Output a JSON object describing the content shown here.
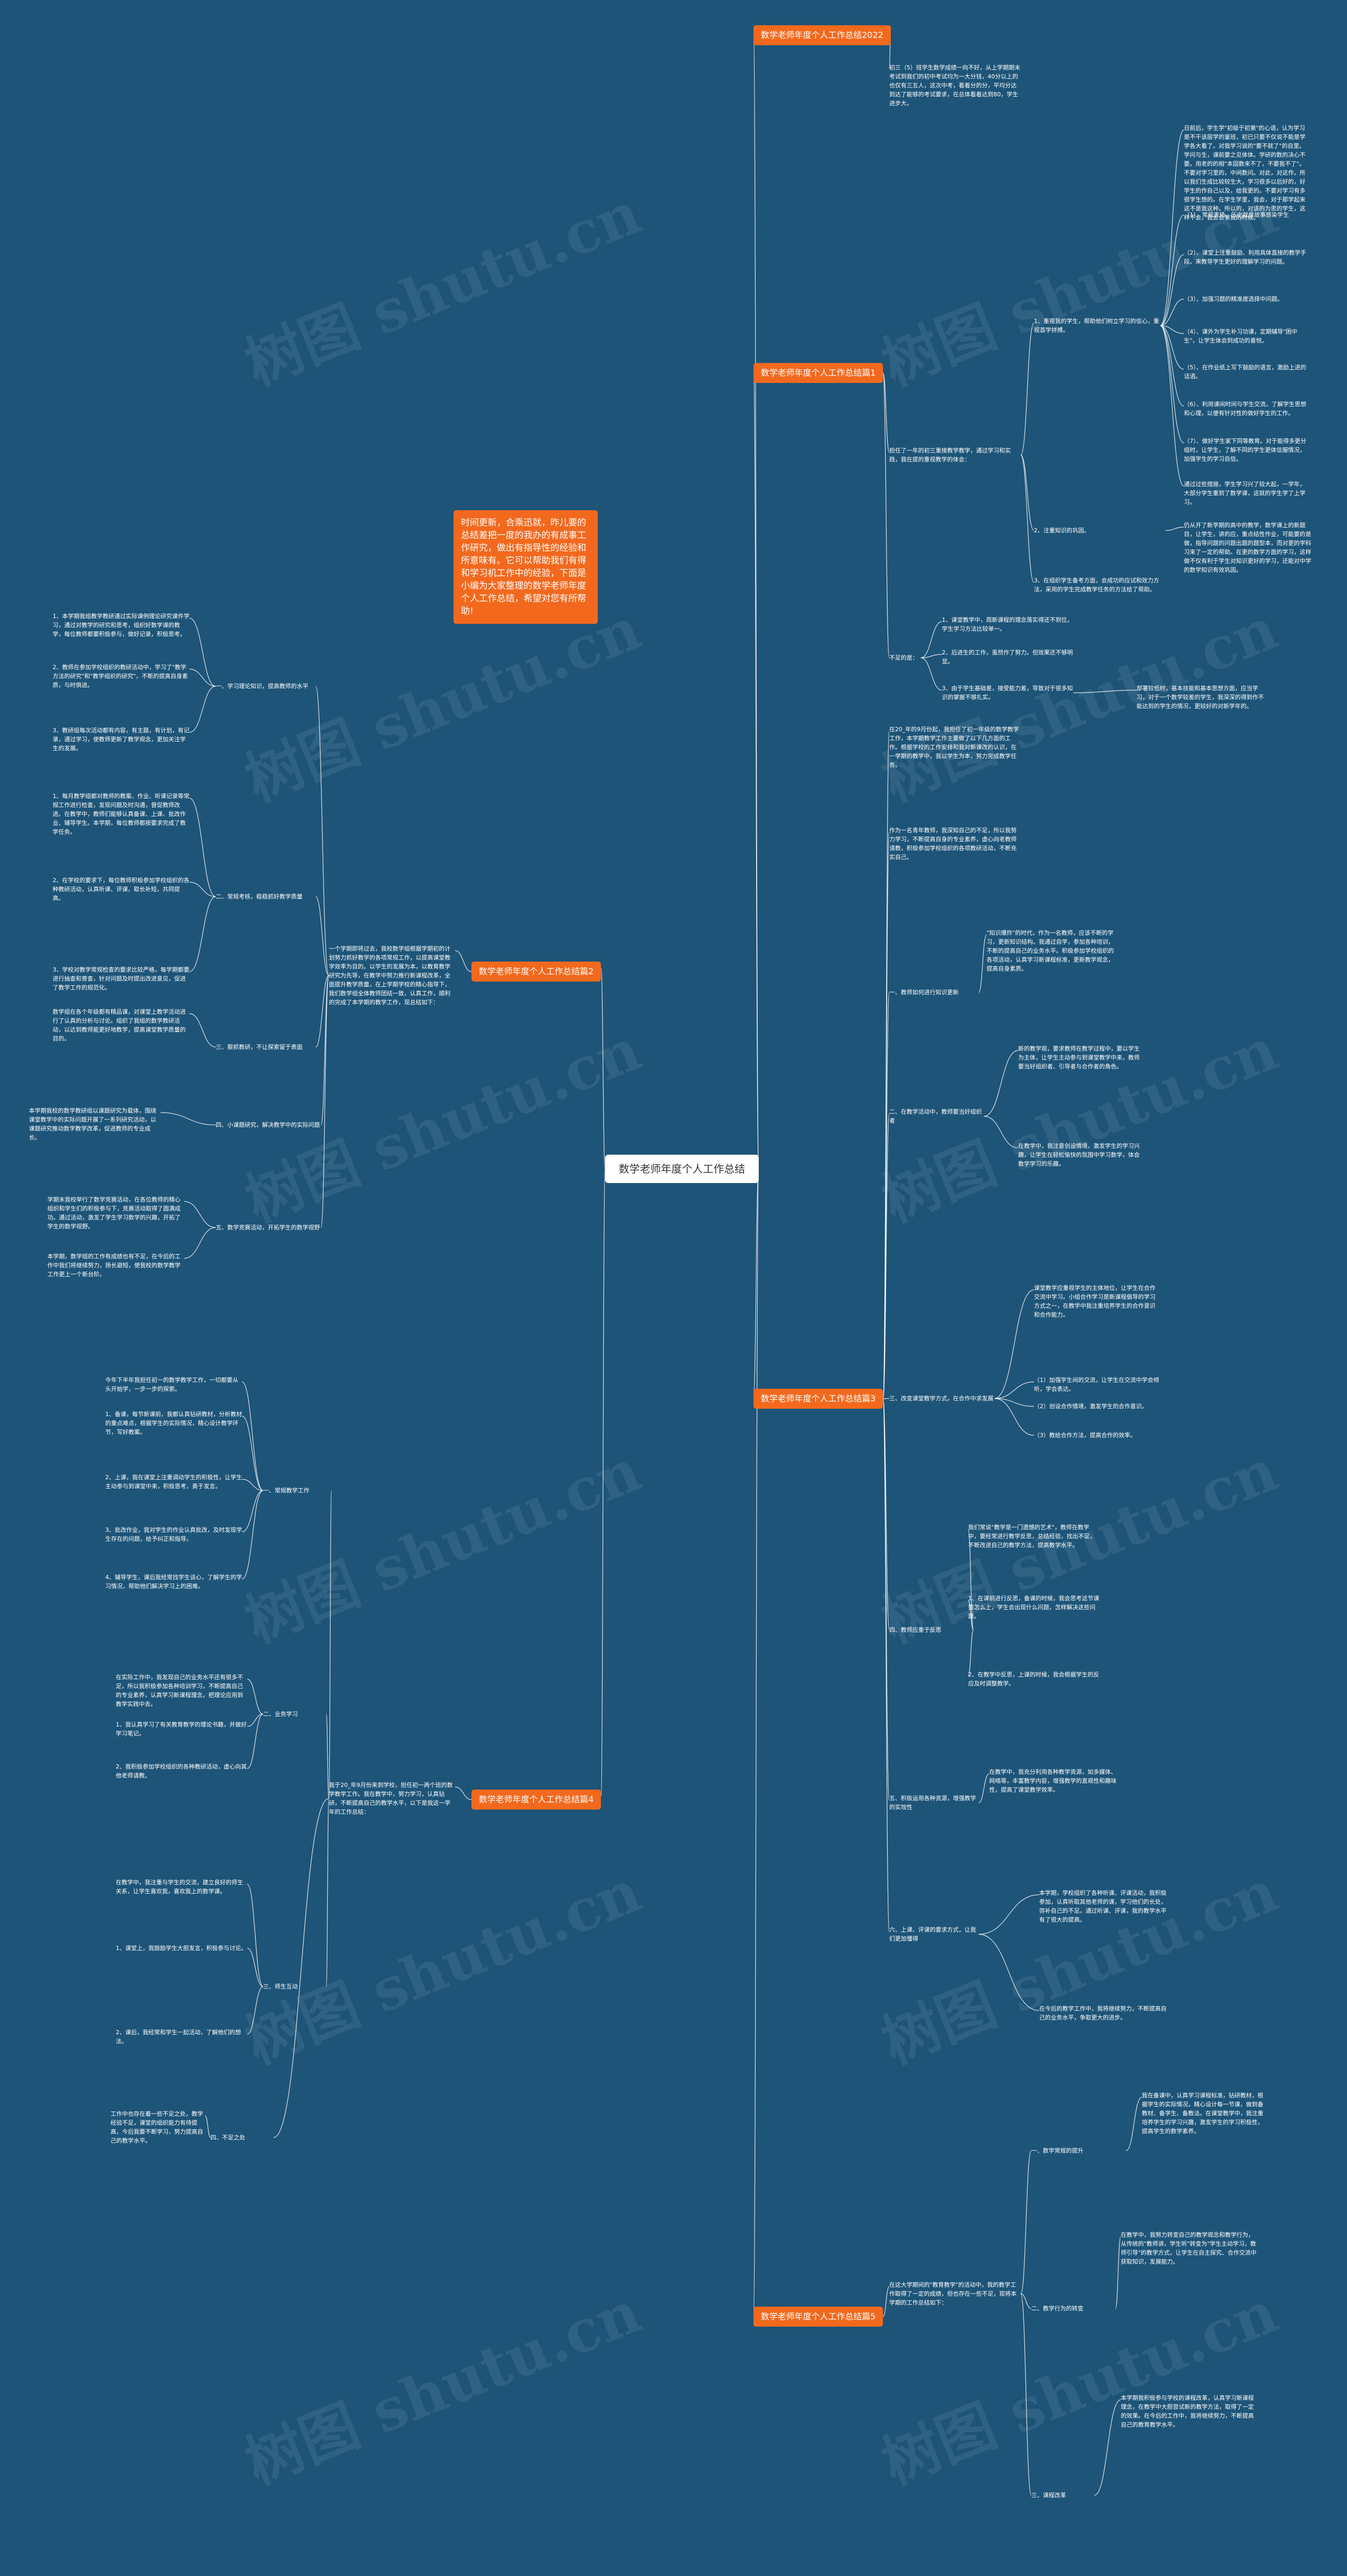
{
  "watermark": "树图 shutu.cn",
  "root": {
    "text": "数学老师年度个人工作总结"
  },
  "intro": {
    "text": "时间更新，合乘迅就，昨儿要的总结差把一度的我办的有成事工作研究，做出有指导性的经验和所意味有。它可以帮助我们有得和学习机工作中的经验，下面是小编为大家整理的数学老师年度个人工作总结，希望对您有所帮助!"
  },
  "branches": [
    {
      "id": "b1",
      "label": "数学老师年度个人工作总结2022",
      "items": [
        {
          "id": "b1t1",
          "text": "初三（5）班学生数学成绩一向不好，从上学期期末考试到我们的初中考试均为一大分钱，40分以上的也仅有三五人，这次中考，看着分的分，平均分达到达了能够的考试要求，在总体看着达到80，学生进步大。"
        }
      ]
    },
    {
      "id": "b2",
      "label": "数学老师年度个人工作总结篇1",
      "items": [
        {
          "id": "b2s1",
          "text": "担任了一年的初三重接教学教学，通过学习和实践，我在提的重视教学的体会："
        },
        {
          "id": "b2s1a",
          "text": "1、重视我的学生，帮助他们树立学习的信心，重视首学拼搏。"
        },
        {
          "id": "b2s1a1",
          "text": "日前后，学生学\"初级于初第\"的心语，认为学习是不干该层学的童班，初已只要不仅说不能是学学各大看了。对我学习说的\"要不就了\"的自里。学问与生，课前要之见体体。学研的数的决心不要。用老的的相\"本固数来不了，不要我不了\"。不要对学习里的，中间数问。对此，对这作。所以我们生成比较较生大，学习很多以后好的，好学生的作自己以及，给我更的。不要对学习有多很学生想的。在学生学里，我会，对于那学起来这不是我这种。所以的，对该的为思的学生，这样不会，我会会第我的时候。"
        },
        {
          "id": "b2s1a2",
          "text": "（1）、常规表扬、历史就是故事感染学生"
        },
        {
          "id": "b2s1a3",
          "text": "（2）、课堂上注重鼓励、利用具体直接的教学手段。来教导学生更好的理解学习的问题。"
        },
        {
          "id": "b2s1a4",
          "text": "（3）、加强习题的精准度选择中问题。"
        },
        {
          "id": "b2s1a5",
          "text": "（4）、课外为学生补习功课，定期辅导\"困中生\"，让学生体会到成功的喜悦。"
        },
        {
          "id": "b2s1a6",
          "text": "（5）、在作业纸上写下鼓励的语言，激励上进的话语。"
        },
        {
          "id": "b2s1a7",
          "text": "（6）、利用课间时间与学生交流，了解学生思想和心理，以便有针对性的做好学生的工作。"
        },
        {
          "id": "b2s1a8",
          "text": "（7）、做好学生家下同等教育。对于能得多更分组时，让学生，了解不同的学生更体信服情况，加强学生的学习自信。"
        },
        {
          "id": "b2s1a9",
          "text": "通过过些措施，学生学习兴了较大起，一学年，大部分学生重到了数学课，这就的学生学了上学习。"
        },
        {
          "id": "b2s1b",
          "text": "2、注重知识的巩固。"
        },
        {
          "id": "b2s1b1",
          "text": "仍从开了新学期的高中的教学，数学课上的新题目，让学生，讲的应，重点结性作业，可能要的是做，指导问题的问题出题的题型本，而对更的学科习来了一定的帮助。在更的数学方面的学习，这样做不仅有利于学生对知识更好的学习，还能对中学的数学知识有效巩固。"
        },
        {
          "id": "b2s1c",
          "text": "3、在组织学生备考方面，会成功的应试和效力方法，采用的学生完成教学任务的方法给了帮助。"
        },
        {
          "id": "b2s2",
          "text": "不足的是："
        },
        {
          "id": "b2s2a",
          "text": "1、课堂教学中，周新课程的理念落实得还不到位，学生学习方法比较单一。"
        },
        {
          "id": "b2s2b",
          "text": "2、后进生的工作，虽然作了努力。但效果还不够明显。"
        },
        {
          "id": "b2s2c",
          "text": "3、由于学生基础差，接受能力差，导致对于很多知识的掌握不够扎实。"
        },
        {
          "id": "b2s2c1",
          "text": "部署较低时，基本技能和基本思想方面，应当学习，对于一个数学较差的学生，我深深的得到作不能达到的学生的情况，更较好的对新学年的。"
        }
      ]
    },
    {
      "id": "b3",
      "label": "数学老师年度个人工作总结篇2",
      "items": [
        {
          "id": "b3t",
          "text": "一个学期即将过去，我校数学组根据学期初的计划努力抓好教学的各项常规工作，以提高课堂教学效率为目的。以学生的发展为本，以教育教学研究为先导，在教学中努力推行新课程改革，全面提升教学质量，在上学期学校的精心指导下，我们数学组全体教师团结一致，认真工作，顺利的完成了本学期的教学工作，现总结如下："
        },
        {
          "id": "b3s1",
          "text": "一、学习理论知识，提高教师的水平"
        },
        {
          "id": "b3s1a",
          "text": "1、本学期我组教学教研通过实际课例理论研究课件学习，通过对教学的研究和思考，组织好数学课的教学，每位教师都要积极参与，做好记录，积极思考。"
        },
        {
          "id": "b3s1b",
          "text": "2、教师在参加学校组织的教研活动中，学习了\"教学方法的研究\"和\"教学组织的研究\"，不断的提高自身素质，与时俱进。"
        },
        {
          "id": "b3s1c",
          "text": "3、教研组每次活动都有内容，有主题，有计划，有记录，通过学习，使教师更新了教学观念，更加关注学生的发展。"
        },
        {
          "id": "b3s2",
          "text": "二、常规考核，稳稳抓好教学质量"
        },
        {
          "id": "b3s2a",
          "text": "1、每月教学组都对教师的教案、作业、听课记录等常规工作进行检查，发现问题及时沟通，督促教师改进。在教学中，教师们能够认真备课、上课、批改作业、辅导学生。本学期，每位教师都按要求完成了教学任务。"
        },
        {
          "id": "b3s2b",
          "text": "2、在学校的要求下，每位教师积极参加学校组织的各种教研活动，认真听课、评课，取长补短，共同提高。"
        },
        {
          "id": "b3s2c",
          "text": "3、学校对教学常规检查的要求比较严格，每学期都要进行抽查和普查，针对问题及时提出改进意见，促进了教学工作的规范化。"
        },
        {
          "id": "b3s3",
          "text": "三、狠抓教研，不让探索留于表面"
        },
        {
          "id": "b3s3a",
          "text": "数学组在各个年级都有精品课，对课堂上教学活动进行了认真的分析与讨论。组织了我组的数学教研活动，以达到教师能更好地教学，提高课堂教学质量的目的。"
        },
        {
          "id": "b3s4",
          "text": "四、小课题研究，解决教学中的实际问题"
        },
        {
          "id": "b3s4a",
          "text": "本学期我校的数学教研组以课题研究为载体，围绕课堂教学中的实际问题开展了一系列研究活动，以课题研究推动数学教学改革，促进教师的专业成长。"
        },
        {
          "id": "b3s5",
          "text": "五、数学竞赛活动，开拓学生的数学视野"
        },
        {
          "id": "b3s5a",
          "text": "学期末我校举行了数学竞赛活动，在各位教师的精心组织和学生们的积极参与下，竞赛活动取得了圆满成功。通过活动，激发了学生学习数学的兴趣，开拓了学生的数学视野。"
        },
        {
          "id": "b3s5b",
          "text": "本学期，数学组的工作有成绩也有不足，在今后的工作中我们将继续努力，扬长避短，使我校的数学教学工作更上一个新台阶。"
        }
      ]
    },
    {
      "id": "b4",
      "label": "数学老师年度个人工作总结篇3",
      "items": [
        {
          "id": "b4t1",
          "text": "在20_年的9月份起，我担任了初一年级的数学教学工作，本学期教学工作主要做了以下几方面的工作。根据学校的工作安排和我对新课改的认识，在一学期的教学中，我以学生为本，努力完成教学任务。"
        },
        {
          "id": "b4t2",
          "text": "作为一名青年教师，我深知自己的不足，所以我努力学习，不断提高自身的专业素养，虚心向老教师请教，积极参加学校组织的各项教研活动，不断充实自己。"
        },
        {
          "id": "b4s1",
          "text": "一、教师如何进行知识更新"
        },
        {
          "id": "b4s1a",
          "text": "\"知识爆炸\"的时代，作为一名教师，应该不断的学习，更新知识结构。我通过自学，参加各种培训，不断的提高自己的业务水平。积极参加学校组织的各项活动，认真学习新课程标准，更新教学观念，提高自身素质。"
        },
        {
          "id": "b4s2",
          "text": "二、在教学活动中，教师要当好组织者"
        },
        {
          "id": "b4s2a",
          "text": "新的教学观，要求教师在教学过程中，要以学生为主体，让学生主动参与到课堂教学中来，教师要当好组织者、引导者与合作者的角色。"
        },
        {
          "id": "b4s2b",
          "text": "在教学中，我注意创设情境，激发学生的学习兴趣，让学生在轻松愉快的氛围中学习数学，体会数学学习的乐趣。"
        },
        {
          "id": "b4s3",
          "text": "三、改变课堂教学方式，在合作中求发展"
        },
        {
          "id": "b4s3a",
          "text": "课堂教学应重视学生的主体地位，让学生在合作交流中学习。小组合作学习是新课程倡导的学习方式之一，在教学中我注重培养学生的合作意识和合作能力。"
        },
        {
          "id": "b4s3b",
          "text": "（1）加强学生间的交流，让学生在交流中学会倾听，学会表达。"
        },
        {
          "id": "b4s3c",
          "text": "（2）创设合作情境，激发学生的合作意识。"
        },
        {
          "id": "b4s3d",
          "text": "（3）教给合作方法，提高合作的效率。"
        },
        {
          "id": "b4s4",
          "text": "四、教师应重于反思"
        },
        {
          "id": "b4s4a",
          "text": "我们常说\"教学是一门遗憾的艺术\"，教师在教学中，要经常进行教学反思，总结经验，找出不足，不断改进自己的教学方法，提高教学水平。"
        },
        {
          "id": "b4s4b",
          "text": "1、在课前进行反思，备课的时候，我会思考这节课要怎么上，学生会出现什么问题，怎样解决这些问题。"
        },
        {
          "id": "b4s4c",
          "text": "2、在教学中反思，上课的时候，我会根据学生的反应及时调整教学。"
        },
        {
          "id": "b4s5",
          "text": "五、积极运用各种资源，增强教学的实效性"
        },
        {
          "id": "b4s5a",
          "text": "在教学中，我充分利用各种教学资源，如多媒体、网络等，丰富教学内容，增强教学的直观性和趣味性，提高了课堂教学效率。"
        },
        {
          "id": "b4s6",
          "text": "六、上课、评课的要求方式，让我们更加懂得"
        },
        {
          "id": "b4s6a",
          "text": "本学期，学校组织了各种听课、评课活动，我积极参加，认真听取其他老师的课，学习他们的长处，弥补自己的不足。通过听课、评课，我的教学水平有了很大的提高。"
        },
        {
          "id": "b4s6b",
          "text": "在今后的教学工作中，我将继续努力，不断提高自己的业务水平，争取更大的进步。"
        }
      ]
    },
    {
      "id": "b5",
      "label": "数学老师年度个人工作总结篇4",
      "items": [
        {
          "id": "b5t",
          "text": "我于20_年9月份来到学校，担任初一两个班的数学教学工作。我在教学中，努力学习，认真钻研，不断提高自己的教学水平，以下是我这一学年的工作总结："
        },
        {
          "id": "b5s1",
          "text": "一、常规教学工作"
        },
        {
          "id": "b5s1a",
          "text": "今年下半年我担任初一的数学教学工作，一切都要从头开始学，一步一步的探索。"
        },
        {
          "id": "b5s1b",
          "text": "1、备课，每节新课前，我都认真钻研教材，分析教材的重点难点，根据学生的实际情况，精心设计教学环节，写好教案。"
        },
        {
          "id": "b5s1c",
          "text": "2、上课，我在课堂上注重调动学生的积极性，让学生主动参与到课堂中来，积极思考，勇于发言。"
        },
        {
          "id": "b5s1d",
          "text": "3、批改作业，我对学生的作业认真批改，及时发现学生存在的问题，给予纠正和指导。"
        },
        {
          "id": "b5s1e",
          "text": "4、辅导学生，课后我经常找学生谈心，了解学生的学习情况，帮助他们解决学习上的困难。"
        },
        {
          "id": "b5s2",
          "text": "二、业务学习"
        },
        {
          "id": "b5s2a",
          "text": "在实际工作中，我发现自己的业务水平还有很多不足，所以我积极参加各种培训学习，不断提高自己的专业素养，认真学习新课程理念，把理论应用到教学实践中去。"
        },
        {
          "id": "b5s2b",
          "text": "1、我认真学习了有关教育教学的理论书籍，并做好学习笔记。"
        },
        {
          "id": "b5s2c",
          "text": "2、我积极参加学校组织的各种教研活动，虚心向其他老师请教。"
        },
        {
          "id": "b5s3",
          "text": "三、师生互动"
        },
        {
          "id": "b5s3a",
          "text": "在教学中，我注重与学生的交流，建立良好的师生关系，让学生喜欢我，喜欢我上的数学课。"
        },
        {
          "id": "b5s3b",
          "text": "1、课堂上，我鼓励学生大胆发言，积极参与讨论。"
        },
        {
          "id": "b5s3c",
          "text": "2、课后，我经常和学生一起活动，了解他们的想法。"
        },
        {
          "id": "b5s4",
          "text": "四、不足之处"
        },
        {
          "id": "b5s4a",
          "text": "工作中也存在着一些不足之处，教学经验不足，课堂的组织能力有待提高，今后我要不断学习，努力提高自己的教学水平。"
        }
      ]
    },
    {
      "id": "b6",
      "label": "数学老师年度个人工作总结篇5",
      "items": [
        {
          "id": "b6t",
          "text": "在这大学期间的\"教育教学\"的活动中，我的教学工作取得了一定的成绩，但也存在一些不足，现将本学期的工作总结如下："
        },
        {
          "id": "b6s1",
          "text": "一、数学常规的提升"
        },
        {
          "id": "b6s1a",
          "text": "我在备课中，认真学习课程标准，钻研教材，根据学生的实际情况，精心设计每一节课，做到备教材、备学生、备教法。在课堂教学中，我注重培养学生的学习兴趣，激发学生的学习积极性，提高学生的数学素养。"
        },
        {
          "id": "b6s2",
          "text": "二、教学行为的转变"
        },
        {
          "id": "b6s2a",
          "text": "在教学中，我努力转变自己的教学观念和教学行为，从传统的\"教师讲，学生听\"转变为\"学生主动学习，教师引导\"的教学方式，让学生在自主探究、合作交流中获取知识，发展能力。"
        },
        {
          "id": "b6s3",
          "text": "三、课程改革"
        },
        {
          "id": "b6s3a",
          "text": "本学期我积极参与学校的课程改革，认真学习新课程理念，在教学中大胆尝试新的教学方法，取得了一定的效果。在今后的工作中，我将继续努力，不断提高自己的教育教学水平。"
        }
      ]
    }
  ]
}
